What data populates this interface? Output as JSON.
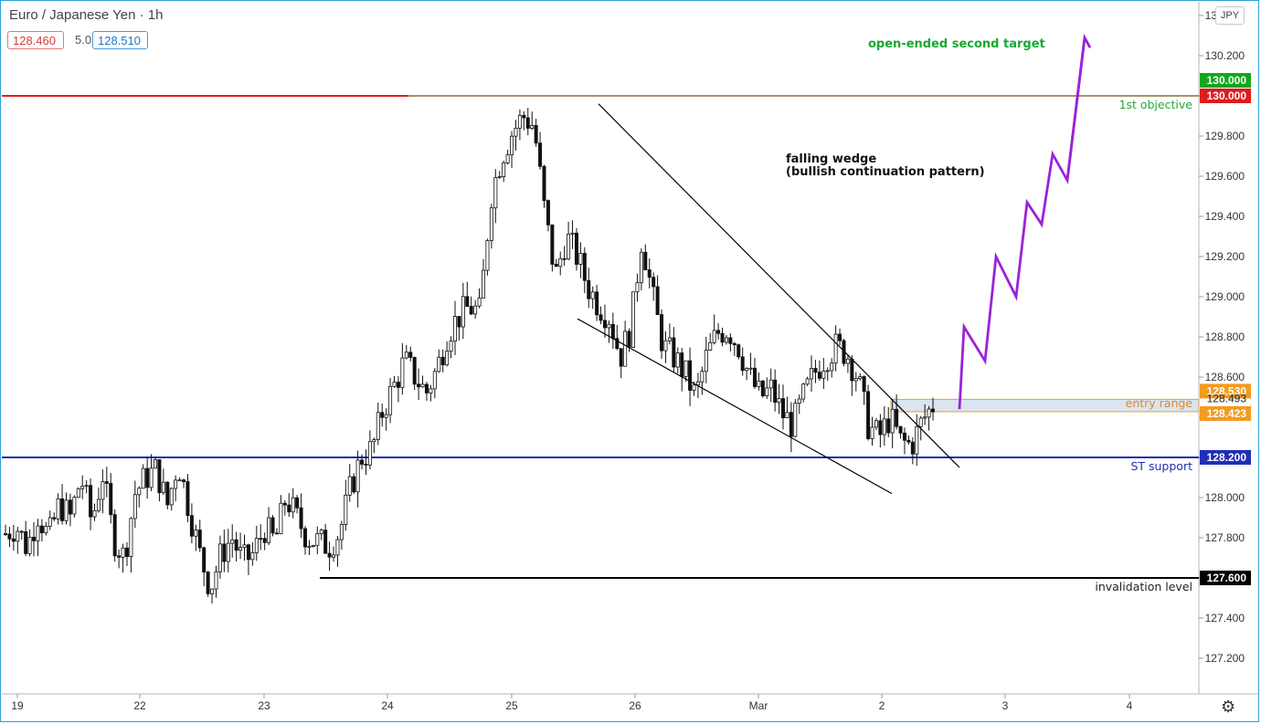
{
  "header": {
    "title": "Euro / Japanese Yen · 1h",
    "bid": "128.460",
    "spread": "5.0",
    "ask": "128.510",
    "currency": "JPY"
  },
  "chart_data": {
    "type": "candlestick",
    "symbol": "EURJPY",
    "timeframe": "1h",
    "ylim": [
      127.1,
      130.4
    ],
    "y_ticks": [
      "127.200",
      "127.400",
      "127.600",
      "127.800",
      "128.000",
      "128.200",
      "128.400",
      "128.600",
      "128.800",
      "129.000",
      "129.200",
      "129.400",
      "129.600",
      "129.800",
      "130.000",
      "130.200",
      "130.400"
    ],
    "x_ticks": [
      "19",
      "22",
      "23",
      "24",
      "25",
      "26",
      "Mar",
      "2",
      "3",
      "4"
    ],
    "current_price": 128.493,
    "levels": [
      {
        "name": "1st objective",
        "price": 130.0,
        "price_label": "130.000",
        "color": "#e01b1b"
      },
      {
        "name": "ST support",
        "price": 128.2,
        "price_label": "128.200",
        "color": "#1f2fb8"
      },
      {
        "name": "invalidation level",
        "price": 127.6,
        "price_label": "127.600",
        "color": "#000000"
      }
    ],
    "entry_range": {
      "label": "entry range",
      "high": 128.53,
      "low": 128.423,
      "high_label": "128.530",
      "low_label": "128.423"
    },
    "target_level": {
      "price": 130.0,
      "label": "130.000",
      "color": "#10a81e"
    },
    "annotations": [
      "falling wedge",
      "(bullish continuation pattern)",
      "open-ended second target"
    ],
    "projection_path": [
      128.44,
      128.85,
      128.68,
      129.2,
      129.0,
      129.47,
      129.36,
      129.71,
      129.58,
      130.29,
      130.24
    ],
    "price_path": [
      127.82,
      127.86,
      127.75,
      127.92,
      127.8,
      127.97,
      127.9,
      128.1,
      127.88,
      128.12,
      127.8,
      127.7,
      128.02,
      128.1,
      128.14,
      127.96,
      128.18,
      127.95,
      127.72,
      127.55,
      127.72,
      127.8,
      127.68,
      127.72,
      127.85,
      127.78,
      128.0,
      127.9,
      127.8,
      127.78,
      127.76,
      127.83,
      128.05,
      128.2,
      128.24,
      128.44,
      128.55,
      128.68,
      128.6,
      128.52,
      128.64,
      128.82,
      128.9,
      128.95,
      128.92,
      129.5,
      129.7,
      129.82,
      129.9,
      129.85,
      129.42,
      129.1,
      129.3,
      129.2,
      129.05,
      128.96,
      128.9,
      128.7,
      128.85,
      129.3,
      129.0,
      128.75,
      128.7,
      128.62,
      128.5,
      128.7,
      128.82,
      128.84,
      128.75,
      128.6,
      128.5,
      128.54,
      128.42,
      128.36,
      128.5,
      128.62,
      128.7,
      128.75,
      128.72,
      128.6,
      128.36,
      128.3,
      128.4,
      128.28,
      128.26,
      128.38,
      128.46
    ]
  }
}
